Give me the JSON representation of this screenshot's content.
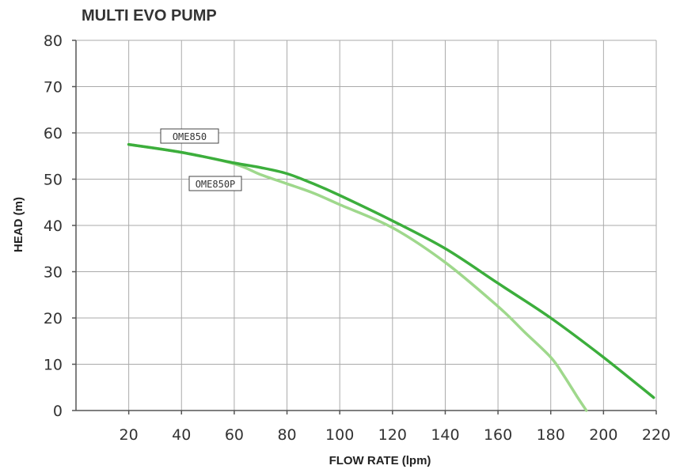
{
  "chart_data": {
    "type": "line",
    "title": "MULTI EVO PUMP",
    "xlabel": "FLOW RATE (lpm)",
    "ylabel": "HEAD (m)",
    "xlim": [
      0,
      220
    ],
    "ylim": [
      0,
      80
    ],
    "xticks": [
      "20",
      "40",
      "60",
      "80",
      "100",
      "120",
      "140",
      "160",
      "180",
      "200",
      "220"
    ],
    "yticks": [
      "0",
      "10",
      "20",
      "30",
      "40",
      "50",
      "60",
      "70",
      "80"
    ],
    "grid": true,
    "series": [
      {
        "name": "OME850",
        "color": "#3cae3c",
        "points": [
          [
            20,
            57.5
          ],
          [
            40,
            55.8
          ],
          [
            60,
            53.5
          ],
          [
            70,
            52.5
          ],
          [
            80,
            51.2
          ],
          [
            90,
            49
          ],
          [
            100,
            46.5
          ],
          [
            120,
            41
          ],
          [
            140,
            35
          ],
          [
            160,
            27.5
          ],
          [
            180,
            20
          ],
          [
            200,
            11.5
          ],
          [
            219,
            2.8
          ]
        ]
      },
      {
        "name": "OME850P",
        "color": "#9fd88c",
        "points": [
          [
            20,
            57.5
          ],
          [
            40,
            55.8
          ],
          [
            60,
            53.3
          ],
          [
            70,
            51
          ],
          [
            80,
            49
          ],
          [
            90,
            47
          ],
          [
            100,
            44.5
          ],
          [
            120,
            39.5
          ],
          [
            140,
            32
          ],
          [
            160,
            22.5
          ],
          [
            170,
            17
          ],
          [
            180,
            11.5
          ],
          [
            185,
            7.5
          ],
          [
            190,
            3
          ],
          [
            193.5,
            0
          ]
        ]
      }
    ]
  }
}
